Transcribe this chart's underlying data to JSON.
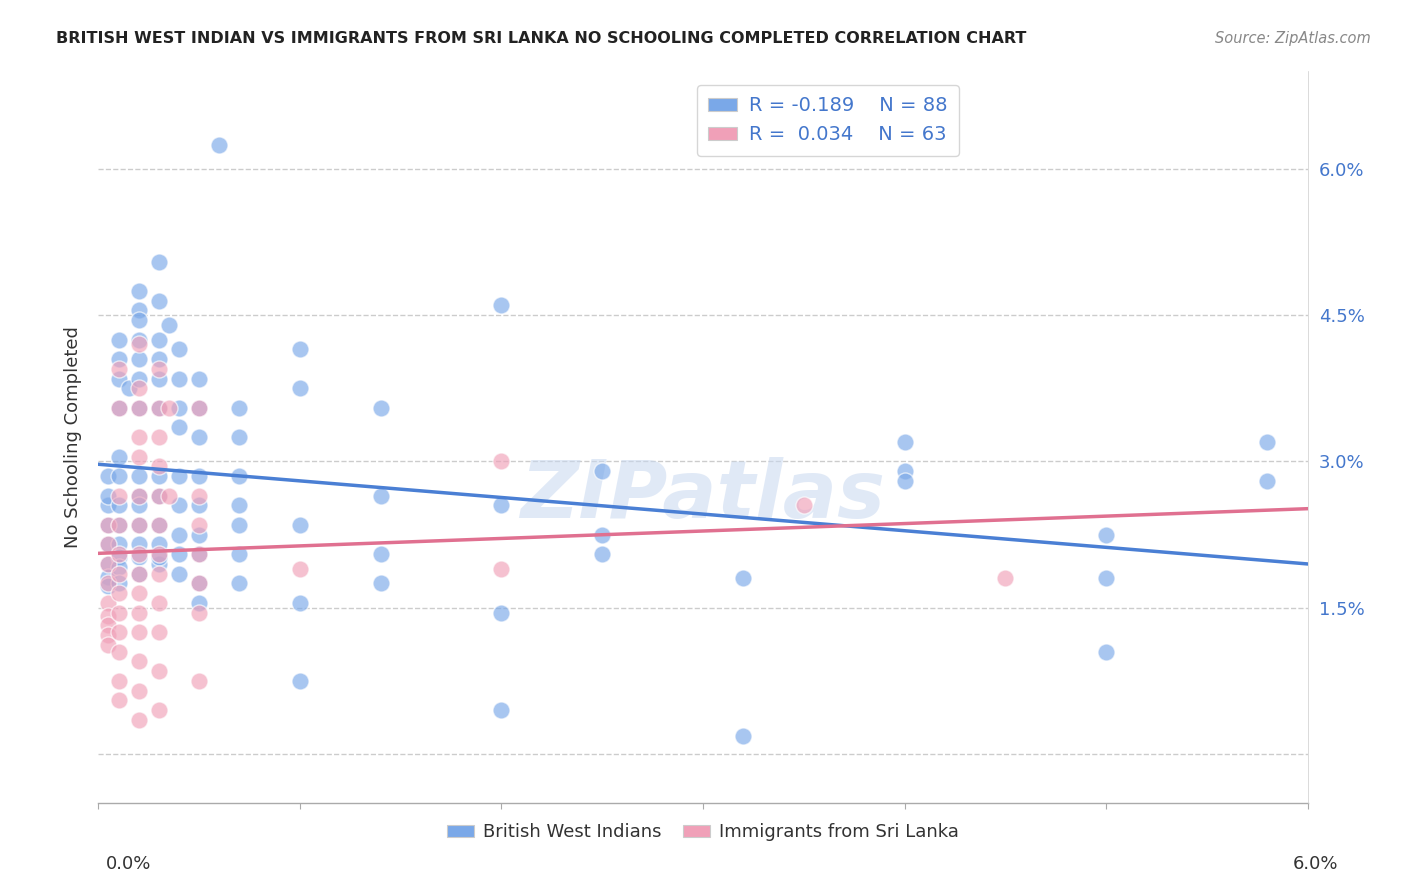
{
  "title": "BRITISH WEST INDIAN VS IMMIGRANTS FROM SRI LANKA NO SCHOOLING COMPLETED CORRELATION CHART",
  "source": "Source: ZipAtlas.com",
  "ylabel": "No Schooling Completed",
  "xlim": [
    0.0,
    6.0
  ],
  "ylim": [
    -0.5,
    7.0
  ],
  "yticks": [
    0.0,
    1.5,
    3.0,
    4.5,
    6.0
  ],
  "ytick_labels": [
    "",
    "1.5%",
    "3.0%",
    "4.5%",
    "6.0%"
  ],
  "blue_color": "#7aa8e8",
  "pink_color": "#f0a0b8",
  "blue_line_color": "#4a7fd4",
  "pink_line_color": "#e07090",
  "watermark": "ZIPatlas",
  "blue_dots": [
    [
      0.05,
      2.85
    ],
    [
      0.05,
      2.55
    ],
    [
      0.05,
      2.35
    ],
    [
      0.05,
      2.15
    ],
    [
      0.05,
      1.95
    ],
    [
      0.05,
      1.82
    ],
    [
      0.05,
      1.72
    ],
    [
      0.05,
      2.65
    ],
    [
      0.1,
      4.25
    ],
    [
      0.1,
      4.05
    ],
    [
      0.1,
      3.85
    ],
    [
      0.1,
      3.55
    ],
    [
      0.1,
      3.05
    ],
    [
      0.1,
      2.85
    ],
    [
      0.1,
      2.55
    ],
    [
      0.1,
      2.35
    ],
    [
      0.1,
      2.15
    ],
    [
      0.1,
      2.02
    ],
    [
      0.1,
      1.92
    ],
    [
      0.1,
      1.75
    ],
    [
      0.15,
      3.75
    ],
    [
      0.2,
      4.75
    ],
    [
      0.2,
      4.55
    ],
    [
      0.2,
      4.45
    ],
    [
      0.2,
      4.25
    ],
    [
      0.2,
      4.05
    ],
    [
      0.2,
      3.85
    ],
    [
      0.2,
      3.55
    ],
    [
      0.2,
      2.85
    ],
    [
      0.2,
      2.65
    ],
    [
      0.2,
      2.55
    ],
    [
      0.2,
      2.35
    ],
    [
      0.2,
      2.15
    ],
    [
      0.2,
      2.02
    ],
    [
      0.2,
      1.85
    ],
    [
      0.3,
      5.05
    ],
    [
      0.3,
      4.65
    ],
    [
      0.3,
      4.25
    ],
    [
      0.3,
      4.05
    ],
    [
      0.3,
      3.85
    ],
    [
      0.3,
      3.55
    ],
    [
      0.3,
      2.85
    ],
    [
      0.3,
      2.65
    ],
    [
      0.3,
      2.35
    ],
    [
      0.3,
      2.15
    ],
    [
      0.3,
      1.95
    ],
    [
      0.3,
      2.02
    ],
    [
      0.35,
      4.4
    ],
    [
      0.4,
      4.15
    ],
    [
      0.4,
      3.85
    ],
    [
      0.4,
      3.55
    ],
    [
      0.4,
      3.35
    ],
    [
      0.4,
      2.85
    ],
    [
      0.4,
      2.55
    ],
    [
      0.4,
      2.25
    ],
    [
      0.4,
      2.05
    ],
    [
      0.4,
      1.85
    ],
    [
      0.5,
      3.85
    ],
    [
      0.5,
      3.55
    ],
    [
      0.5,
      3.25
    ],
    [
      0.5,
      2.85
    ],
    [
      0.5,
      2.55
    ],
    [
      0.5,
      2.25
    ],
    [
      0.5,
      2.05
    ],
    [
      0.5,
      1.75
    ],
    [
      0.5,
      1.55
    ],
    [
      0.7,
      3.55
    ],
    [
      0.7,
      3.25
    ],
    [
      0.7,
      2.85
    ],
    [
      0.7,
      2.55
    ],
    [
      0.7,
      2.35
    ],
    [
      0.7,
      2.05
    ],
    [
      0.7,
      1.75
    ],
    [
      1.0,
      4.15
    ],
    [
      1.0,
      3.75
    ],
    [
      1.0,
      2.35
    ],
    [
      1.0,
      1.55
    ],
    [
      1.0,
      0.75
    ],
    [
      1.4,
      3.55
    ],
    [
      1.4,
      2.65
    ],
    [
      1.4,
      2.05
    ],
    [
      1.4,
      1.75
    ],
    [
      2.0,
      4.6
    ],
    [
      2.0,
      2.55
    ],
    [
      2.0,
      1.45
    ],
    [
      2.0,
      0.45
    ],
    [
      2.5,
      2.9
    ],
    [
      2.5,
      2.25
    ],
    [
      2.5,
      2.05
    ],
    [
      3.2,
      1.8
    ],
    [
      3.2,
      0.18
    ],
    [
      4.0,
      3.2
    ],
    [
      4.0,
      2.9
    ],
    [
      4.0,
      2.8
    ],
    [
      5.0,
      2.25
    ],
    [
      5.0,
      1.8
    ],
    [
      5.0,
      1.05
    ],
    [
      5.8,
      3.2
    ],
    [
      5.8,
      2.8
    ],
    [
      0.6,
      6.25
    ]
  ],
  "pink_dots": [
    [
      0.05,
      2.35
    ],
    [
      0.05,
      2.15
    ],
    [
      0.05,
      1.95
    ],
    [
      0.05,
      1.75
    ],
    [
      0.05,
      1.55
    ],
    [
      0.05,
      1.42
    ],
    [
      0.05,
      1.32
    ],
    [
      0.05,
      1.22
    ],
    [
      0.05,
      1.12
    ],
    [
      0.1,
      3.95
    ],
    [
      0.1,
      3.55
    ],
    [
      0.1,
      2.65
    ],
    [
      0.1,
      2.35
    ],
    [
      0.1,
      2.05
    ],
    [
      0.1,
      1.85
    ],
    [
      0.1,
      1.65
    ],
    [
      0.1,
      1.45
    ],
    [
      0.1,
      1.25
    ],
    [
      0.1,
      1.05
    ],
    [
      0.1,
      0.75
    ],
    [
      0.1,
      0.55
    ],
    [
      0.2,
      4.2
    ],
    [
      0.2,
      3.75
    ],
    [
      0.2,
      3.55
    ],
    [
      0.2,
      3.25
    ],
    [
      0.2,
      3.05
    ],
    [
      0.2,
      2.65
    ],
    [
      0.2,
      2.35
    ],
    [
      0.2,
      2.05
    ],
    [
      0.2,
      1.85
    ],
    [
      0.2,
      1.65
    ],
    [
      0.2,
      1.45
    ],
    [
      0.2,
      1.25
    ],
    [
      0.2,
      0.95
    ],
    [
      0.2,
      0.65
    ],
    [
      0.2,
      0.35
    ],
    [
      0.3,
      3.95
    ],
    [
      0.3,
      3.55
    ],
    [
      0.3,
      3.25
    ],
    [
      0.3,
      2.95
    ],
    [
      0.3,
      2.65
    ],
    [
      0.3,
      2.35
    ],
    [
      0.3,
      2.05
    ],
    [
      0.3,
      1.85
    ],
    [
      0.3,
      1.55
    ],
    [
      0.3,
      1.25
    ],
    [
      0.3,
      0.85
    ],
    [
      0.3,
      0.45
    ],
    [
      0.35,
      3.55
    ],
    [
      0.35,
      2.65
    ],
    [
      0.5,
      3.55
    ],
    [
      0.5,
      2.65
    ],
    [
      0.5,
      2.35
    ],
    [
      0.5,
      2.05
    ],
    [
      0.5,
      1.75
    ],
    [
      0.5,
      1.45
    ],
    [
      0.5,
      0.75
    ],
    [
      1.0,
      1.9
    ],
    [
      2.0,
      3.0
    ],
    [
      2.0,
      1.9
    ],
    [
      3.5,
      2.55
    ],
    [
      4.5,
      1.8
    ]
  ],
  "regression_blue": [
    -0.189,
    2.85,
    6.0
  ],
  "regression_pink": [
    0.034,
    1.82,
    6.0
  ]
}
